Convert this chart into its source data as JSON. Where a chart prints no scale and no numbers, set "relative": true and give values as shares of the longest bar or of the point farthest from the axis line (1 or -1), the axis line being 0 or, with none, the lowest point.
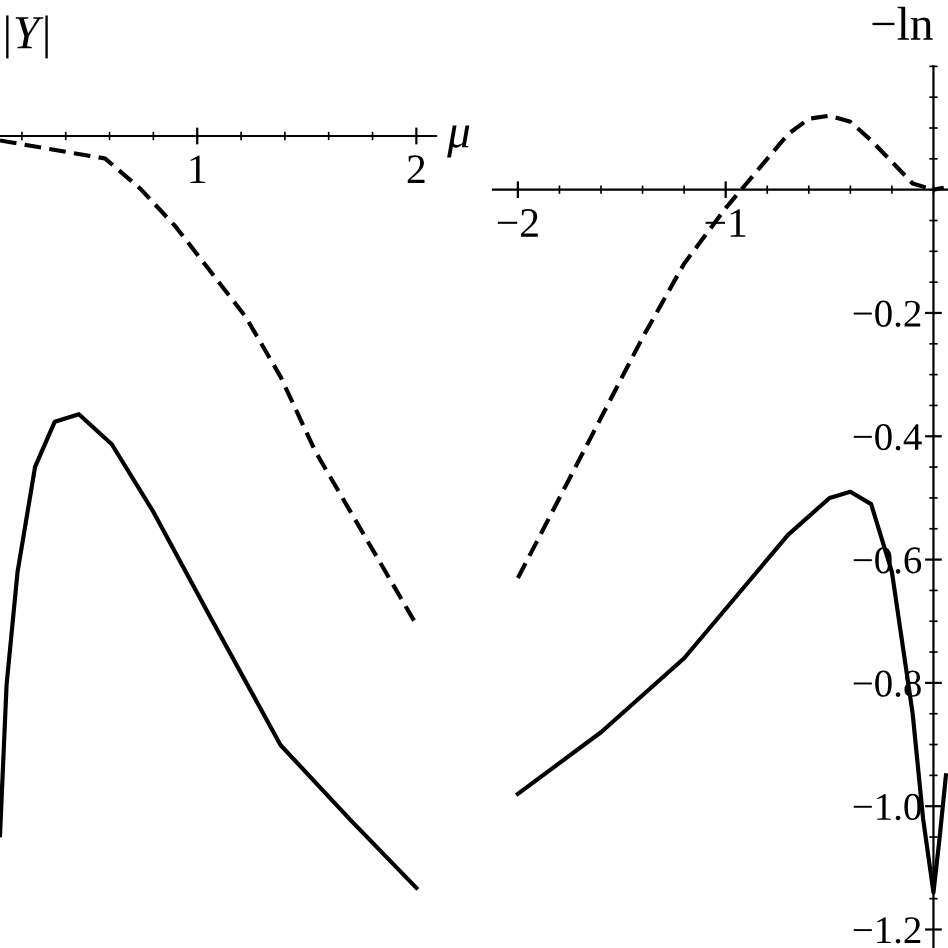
{
  "chart_data": [
    {
      "type": "line",
      "ylabel": "|Y|",
      "xlabel": "μ",
      "relative": true,
      "xlim": [
        0.1,
        2.09
      ],
      "xticks": [
        1,
        2
      ],
      "tick_labels": "x",
      "series": [
        {
          "color": "#000000",
          "line_style": "dashed",
          "x": [
            0.1,
            0.58,
            0.74,
            0.9,
            1.06,
            1.22,
            1.38,
            1.54,
            1.7,
            1.86,
            2.0
          ],
          "values": [
            -0.006,
            -0.03,
            -0.07,
            -0.12,
            -0.18,
            -0.24,
            -0.32,
            -0.42,
            -0.5,
            -0.58,
            -0.65
          ]
        },
        {
          "color": "#000000",
          "line_style": "solid",
          "x": [
            0.1,
            0.13,
            0.18,
            0.26,
            0.35,
            0.46,
            0.61,
            0.8,
            1.06,
            1.38,
            1.7,
            2.0
          ],
          "values": [
            -0.93,
            -0.73,
            -0.58,
            -0.44,
            -0.38,
            -0.37,
            -0.41,
            -0.5,
            -0.64,
            -0.81,
            -0.91,
            -1.0
          ]
        }
      ]
    },
    {
      "type": "line",
      "ylabel": "−ln",
      "xlim": [
        -2.12,
        0.07
      ],
      "ylim": [
        -1.23,
        0.2
      ],
      "xticks": [
        -2,
        -1
      ],
      "yticks": [
        -0.2,
        -0.4,
        -0.6,
        -0.8,
        {
          "value": -1,
          "label": "−1.0"
        },
        -1.2
      ],
      "series": [
        {
          "color": "#000000",
          "line_style": "dashed",
          "x": [
            -2,
            -1.8,
            -1.6,
            -1.4,
            -1.2,
            -1.0,
            -0.9,
            -0.8,
            -0.7,
            -0.6,
            -0.5,
            -0.4,
            -0.3,
            -0.2,
            -0.1,
            0,
            0.05
          ],
          "values": [
            -0.63,
            -0.5,
            -0.37,
            -0.24,
            -0.12,
            -0.03,
            0.01,
            0.05,
            0.09,
            0.115,
            0.12,
            0.11,
            0.08,
            0.045,
            0.01,
            0,
            0.003
          ]
        },
        {
          "color": "#000000",
          "line_style": "solid",
          "x": [
            -2,
            -1.6,
            -1.2,
            -0.9,
            -0.7,
            -0.5,
            -0.4,
            -0.3,
            -0.2,
            -0.1,
            -0.05,
            0,
            0.03,
            0.06
          ],
          "values": [
            -0.98,
            -0.88,
            -0.76,
            -0.64,
            -0.56,
            -0.5,
            -0.49,
            -0.51,
            -0.62,
            -0.85,
            -1.02,
            -1.14,
            -1.05,
            -0.95
          ]
        }
      ]
    }
  ]
}
